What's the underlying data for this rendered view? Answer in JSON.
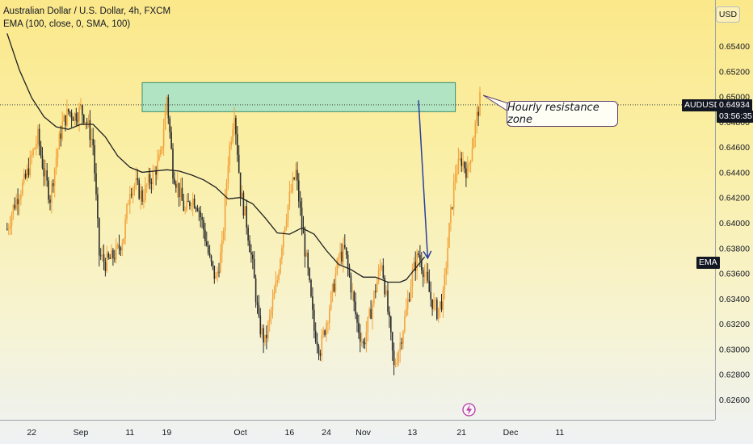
{
  "legend": {
    "symbol_line": "Australian Dollar / U.S. Dollar, 4h, FXCM",
    "indicator_line": "EMA (100, close, 0, SMA, 100)"
  },
  "currency_label": "USD",
  "annotation": {
    "text": "Hourly resistance zone"
  },
  "price_tags": {
    "symbol": "AUDUSD",
    "last_price": "0.64934",
    "countdown": "03:56:35",
    "ema_label": "EMA"
  },
  "colors": {
    "candle": "#f2a33c",
    "candle_dark": "#2b2b2b",
    "ema_line": "#1f1f1f",
    "zone_fill": "#a9e3c6",
    "zone_border": "#3a8f6c",
    "arrow": "#2b3f9e",
    "lightning": "#b33aa8"
  },
  "chart_data": {
    "type": "candlestick",
    "y_ticks": [
      "0.65400",
      "0.65200",
      "0.65000",
      "0.64800",
      "0.64600",
      "0.64400",
      "0.64200",
      "0.64000",
      "0.63800",
      "0.63600",
      "0.63400",
      "0.63200",
      "0.63000",
      "0.62800",
      "0.62600"
    ],
    "y_tick_values": [
      0.654,
      0.652,
      0.65,
      0.648,
      0.646,
      0.644,
      0.642,
      0.64,
      0.638,
      0.636,
      0.634,
      0.632,
      0.63,
      0.628,
      0.626
    ],
    "ylim": [
      0.6244,
      0.6562
    ],
    "x_tick_labels": [
      "22",
      "Sep",
      "11",
      "19",
      "Oct",
      "16",
      "24",
      "Nov",
      "13",
      "21",
      "Dec",
      "11"
    ],
    "x_tick_positions": [
      -8,
      0,
      8,
      14,
      26,
      34,
      40,
      46,
      54,
      62,
      70,
      78
    ],
    "x_range": [
      -12,
      82
    ],
    "resistance_zone": {
      "low": 0.6488,
      "high": 0.6511,
      "x_start": 10,
      "x_end": 61
    },
    "last_price": 0.64934,
    "forecast_arrow": {
      "x_from": 55,
      "y_from": 0.6497,
      "x_to": 56.5,
      "y_to": 0.6372
    },
    "ema_path": [
      [
        -12,
        0.655
      ],
      [
        -10,
        0.6521
      ],
      [
        -8,
        0.6499
      ],
      [
        -6,
        0.6484
      ],
      [
        -4,
        0.6476
      ],
      [
        -2,
        0.6474
      ],
      [
        0,
        0.6478
      ],
      [
        2,
        0.6478
      ],
      [
        4,
        0.6468
      ],
      [
        6,
        0.6453
      ],
      [
        8,
        0.6444
      ],
      [
        10,
        0.644
      ],
      [
        12,
        0.6441
      ],
      [
        14,
        0.6442
      ],
      [
        16,
        0.6441
      ],
      [
        18,
        0.6438
      ],
      [
        20,
        0.6434
      ],
      [
        22,
        0.6428
      ],
      [
        24,
        0.6419
      ],
      [
        26,
        0.642
      ],
      [
        28,
        0.6415
      ],
      [
        30,
        0.6404
      ],
      [
        32,
        0.6392
      ],
      [
        34,
        0.6391
      ],
      [
        36,
        0.6396
      ],
      [
        38,
        0.6391
      ],
      [
        40,
        0.6378
      ],
      [
        42,
        0.6367
      ],
      [
        44,
        0.6363
      ],
      [
        46,
        0.6357
      ],
      [
        48,
        0.6357
      ],
      [
        50,
        0.6353
      ],
      [
        52,
        0.6353
      ],
      [
        53,
        0.6355
      ],
      [
        55,
        0.6367
      ],
      [
        56,
        0.6373
      ]
    ],
    "close_path": [
      [
        -12,
        0.6395
      ],
      [
        -11,
        0.6412
      ],
      [
        -10,
        0.6424
      ],
      [
        -9,
        0.6435
      ],
      [
        -8,
        0.6452
      ],
      [
        -7,
        0.6468
      ],
      [
        -6,
        0.644
      ],
      [
        -5,
        0.642
      ],
      [
        -4,
        0.6452
      ],
      [
        -3,
        0.6478
      ],
      [
        -2,
        0.6488
      ],
      [
        -1,
        0.6485
      ],
      [
        0,
        0.649
      ],
      [
        1,
        0.648
      ],
      [
        2,
        0.6462
      ],
      [
        3,
        0.6375
      ],
      [
        4,
        0.6368
      ],
      [
        5,
        0.6372
      ],
      [
        6,
        0.6378
      ],
      [
        7,
        0.639
      ],
      [
        8,
        0.6428
      ],
      [
        9,
        0.643
      ],
      [
        10,
        0.642
      ],
      [
        11,
        0.6432
      ],
      [
        12,
        0.644
      ],
      [
        13,
        0.6452
      ],
      [
        14,
        0.65
      ],
      [
        15,
        0.6442
      ],
      [
        16,
        0.6425
      ],
      [
        17,
        0.6408
      ],
      [
        18,
        0.642
      ],
      [
        19,
        0.6415
      ],
      [
        20,
        0.6395
      ],
      [
        21,
        0.637
      ],
      [
        22,
        0.6355
      ],
      [
        23,
        0.638
      ],
      [
        24,
        0.645
      ],
      [
        25,
        0.649
      ],
      [
        26,
        0.6425
      ],
      [
        27,
        0.64
      ],
      [
        28,
        0.6365
      ],
      [
        29,
        0.632
      ],
      [
        30,
        0.6305
      ],
      [
        31,
        0.633
      ],
      [
        32,
        0.6355
      ],
      [
        33,
        0.6395
      ],
      [
        34,
        0.642
      ],
      [
        35,
        0.644
      ],
      [
        36,
        0.6398
      ],
      [
        37,
        0.636
      ],
      [
        38,
        0.6315
      ],
      [
        39,
        0.63
      ],
      [
        40,
        0.6322
      ],
      [
        41,
        0.6345
      ],
      [
        42,
        0.6372
      ],
      [
        43,
        0.6378
      ],
      [
        44,
        0.635
      ],
      [
        45,
        0.632
      ],
      [
        46,
        0.6303
      ],
      [
        47,
        0.6325
      ],
      [
        48,
        0.6348
      ],
      [
        49,
        0.637
      ],
      [
        50,
        0.633
      ],
      [
        51,
        0.6285
      ],
      [
        52,
        0.6305
      ],
      [
        53,
        0.633
      ],
      [
        54,
        0.636
      ],
      [
        55,
        0.6375
      ],
      [
        56,
        0.636
      ],
      [
        57,
        0.634
      ],
      [
        58,
        0.633
      ],
      [
        59,
        0.634
      ],
      [
        60,
        0.6395
      ],
      [
        61,
        0.644
      ],
      [
        62,
        0.645
      ],
      [
        63,
        0.644
      ],
      [
        64,
        0.647
      ],
      [
        65,
        0.6497
      ]
    ]
  }
}
